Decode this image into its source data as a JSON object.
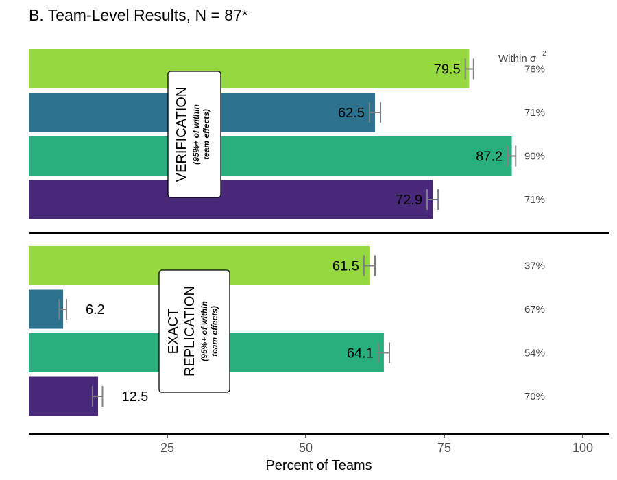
{
  "chart_data": {
    "type": "bar",
    "orientation": "horizontal",
    "title": "B. Team-Level Results, N = 87*",
    "xlabel": "Percent of Teams",
    "xlim": [
      0,
      105
    ],
    "x_ticks": [
      25,
      50,
      75,
      100
    ],
    "grid": false,
    "legend": "none",
    "within_header": "Within σ",
    "within_header_sup": "2",
    "panels": [
      {
        "label": "VERIFICATION",
        "sublabel_lines": [
          "(95%+ of within",
          "team effects)"
        ],
        "bars": [
          {
            "value": 79.5,
            "label": "79.5",
            "err_low": 78.8,
            "err_high": 80.3,
            "within": "76%",
            "color": "#95d840"
          },
          {
            "value": 62.5,
            "label": "62.5",
            "err_low": 61.5,
            "err_high": 63.5,
            "within": "71%",
            "color": "#2c728e"
          },
          {
            "value": 87.2,
            "label": "87.2",
            "err_low": 86.4,
            "err_high": 87.9,
            "within": "90%",
            "color": "#29af7f"
          },
          {
            "value": 72.9,
            "label": "72.9",
            "err_low": 71.9,
            "err_high": 73.9,
            "within": "71%",
            "color": "#482878"
          }
        ]
      },
      {
        "label_lines": [
          "EXACT",
          "REPLICATION"
        ],
        "sublabel_lines": [
          "(95%+ of within",
          "team effects)"
        ],
        "bars": [
          {
            "value": 61.5,
            "label": "61.5",
            "err_low": 60.5,
            "err_high": 62.5,
            "within": "37%",
            "color": "#95d840"
          },
          {
            "value": 6.2,
            "label": "6.2",
            "err_low": 5.5,
            "err_high": 6.8,
            "within": "67%",
            "color": "#2c728e"
          },
          {
            "value": 64.1,
            "label": "64.1",
            "err_low": 63.1,
            "err_high": 65.1,
            "within": "54%",
            "color": "#29af7f"
          },
          {
            "value": 12.5,
            "label": "12.5",
            "err_low": 11.5,
            "err_high": 13.3,
            "within": "70%",
            "color": "#482878"
          }
        ]
      }
    ]
  }
}
